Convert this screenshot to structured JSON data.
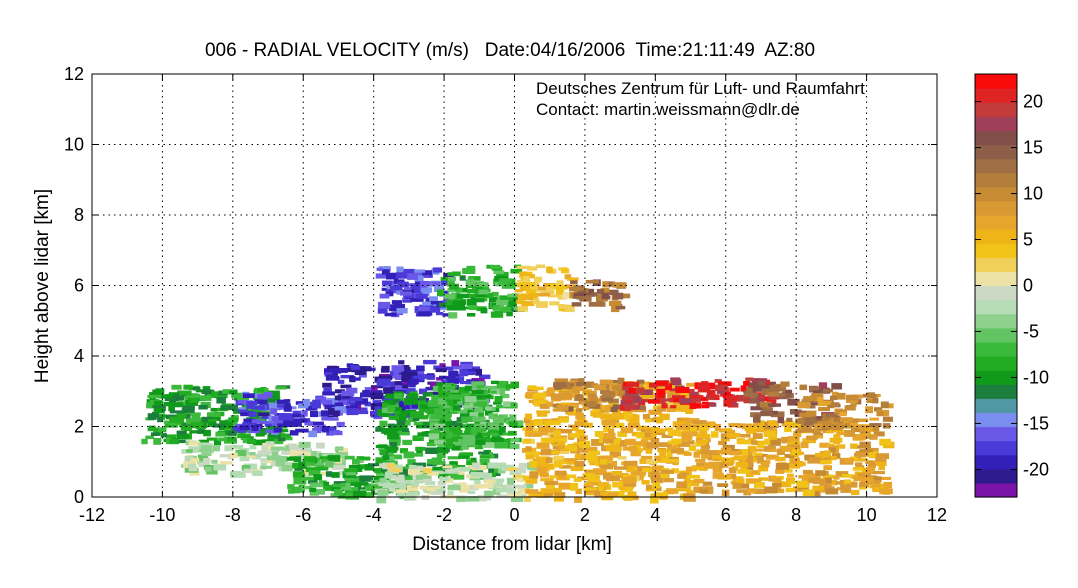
{
  "chart_data": {
    "type": "heatmap",
    "title": "006 - RADIAL VELOCITY (m/s)   Date:04/16/2006  Time:21:11:49  AZ:80",
    "xlabel": "Distance from lidar [km]",
    "ylabel": "Height above lidar [km]",
    "xlim": [
      -12,
      12
    ],
    "ylim": [
      0,
      12
    ],
    "xticks": [
      -12,
      -10,
      -8,
      -6,
      -4,
      -2,
      0,
      2,
      4,
      6,
      8,
      10,
      12
    ],
    "yticks": [
      0,
      2,
      4,
      6,
      8,
      10,
      12
    ],
    "grid": true,
    "annotations": [
      "Deutsches Zentrum für Luft- und Raumfahrt",
      "Contact: martin.weissmann@dlr.de"
    ],
    "colorbar": {
      "range": [
        -23,
        23
      ],
      "ticks": [
        20,
        15,
        10,
        5,
        0,
        -5,
        -10,
        -15,
        -20
      ],
      "colors": [
        "#7a14a8",
        "#2d1a8c",
        "#3320b8",
        "#4a3ad8",
        "#6a58e8",
        "#7a8ef0",
        "#4f98a4",
        "#1c7e3c",
        "#0f9a1c",
        "#22ac22",
        "#3bb93b",
        "#62c462",
        "#8fd08f",
        "#b6dcb6",
        "#cbd9c4",
        "#ede2a6",
        "#f1d05a",
        "#f1c318",
        "#eeb418",
        "#e7a52c",
        "#d99a33",
        "#c78c33",
        "#b37d3a",
        "#9f6e45",
        "#8d5e48",
        "#824e4a",
        "#a04058",
        "#c23a3a",
        "#e02424",
        "#f80a0a"
      ]
    },
    "velocity_regions": [
      {
        "x": [
          -10.6,
          -6.5
        ],
        "y": [
          1.6,
          3.2
        ],
        "v": -9
      },
      {
        "x": [
          -8.0,
          -5.0
        ],
        "y": [
          1.8,
          3.0
        ],
        "v": -17
      },
      {
        "x": [
          -5.5,
          -3.0
        ],
        "y": [
          2.4,
          3.8
        ],
        "v": -19
      },
      {
        "x": [
          -3.5,
          -1.0
        ],
        "y": [
          2.6,
          3.9
        ],
        "v": -19
      },
      {
        "x": [
          -4.0,
          -0.5
        ],
        "y": [
          0.6,
          3.0
        ],
        "v": -9
      },
      {
        "x": [
          -2.5,
          0.0
        ],
        "y": [
          1.5,
          3.3
        ],
        "v": -7
      },
      {
        "x": [
          -9.5,
          -5.0
        ],
        "y": [
          0.7,
          1.6
        ],
        "v": -2
      },
      {
        "x": [
          -6.5,
          -3.0
        ],
        "y": [
          0.1,
          1.2
        ],
        "v": -8
      },
      {
        "x": [
          -4.0,
          0.5
        ],
        "y": [
          0.0,
          1.0
        ],
        "v": -1
      },
      {
        "x": [
          0.2,
          5.0
        ],
        "y": [
          0.0,
          3.3
        ],
        "v": 6
      },
      {
        "x": [
          5.0,
          10.5
        ],
        "y": [
          0.2,
          2.2
        ],
        "v": 7
      },
      {
        "x": [
          1.0,
          3.5
        ],
        "y": [
          2.5,
          3.4
        ],
        "v": 11
      },
      {
        "x": [
          3.0,
          7.2
        ],
        "y": [
          2.6,
          3.4
        ],
        "v": 20
      },
      {
        "x": [
          6.5,
          9.0
        ],
        "y": [
          2.2,
          3.3
        ],
        "v": 14
      },
      {
        "x": [
          8.0,
          10.5
        ],
        "y": [
          2.0,
          3.0
        ],
        "v": 10
      },
      {
        "x": [
          -4.0,
          -2.0
        ],
        "y": [
          5.2,
          6.6
        ],
        "v": -17
      },
      {
        "x": [
          -2.2,
          0.0
        ],
        "y": [
          5.2,
          6.6
        ],
        "v": -8
      },
      {
        "x": [
          0.0,
          1.5
        ],
        "y": [
          5.4,
          6.6
        ],
        "v": 4
      },
      {
        "x": [
          1.5,
          3.0
        ],
        "y": [
          5.4,
          6.2
        ],
        "v": 13
      }
    ]
  }
}
